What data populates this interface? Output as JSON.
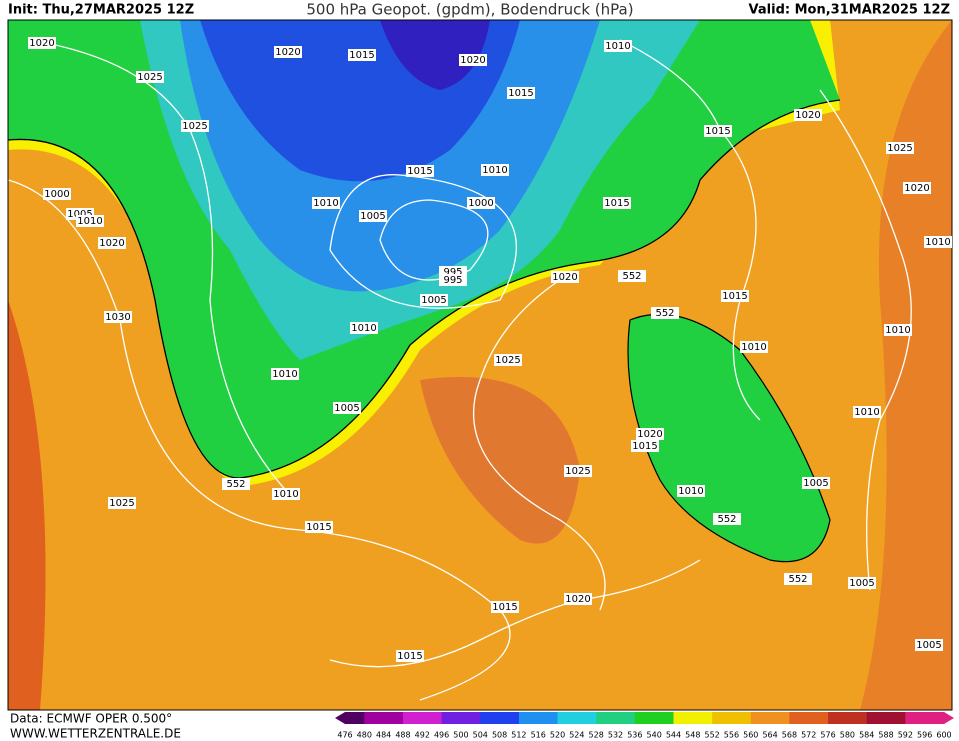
{
  "header": {
    "init": "Init: Thu,27MAR2025 12Z",
    "title": "500 hPa Geopot. (gpdm), Bodendruck (hPa)",
    "valid": "Valid: Mon,31MAR2025 12Z"
  },
  "footer": {
    "source": "Data: ECMWF OPER 0.500°",
    "site": "WWW.WETTERZENTRALE.DE"
  },
  "legend": {
    "labels": [
      "476",
      "480",
      "484",
      "488",
      "492",
      "496",
      "500",
      "504",
      "508",
      "512",
      "516",
      "520",
      "524",
      "528",
      "532",
      "536",
      "540",
      "544",
      "548",
      "552",
      "556",
      "560",
      "564",
      "568",
      "572",
      "576",
      "580",
      "584",
      "588",
      "592",
      "596",
      "600"
    ]
  },
  "map": {
    "contour_labels": [
      "1020",
      "1025",
      "1020",
      "1015",
      "1020",
      "1010",
      "1015",
      "1025",
      "1015",
      "1020",
      "1025",
      "1020",
      "1010",
      "1015",
      "1010",
      "1000",
      "1005",
      "1010",
      "1020",
      "1010",
      "1005",
      "1000",
      "1015",
      "995",
      "995",
      "1005",
      "1020",
      "552",
      "1015",
      "552",
      "1030",
      "1010",
      "1010",
      "1010",
      "1025",
      "1010",
      "1005",
      "1010",
      "1020",
      "1015",
      "1025",
      "552",
      "1010",
      "1010",
      "1005",
      "1025",
      "1015",
      "552",
      "552",
      "1005",
      "1015",
      "1020",
      "1005",
      "1015"
    ]
  }
}
